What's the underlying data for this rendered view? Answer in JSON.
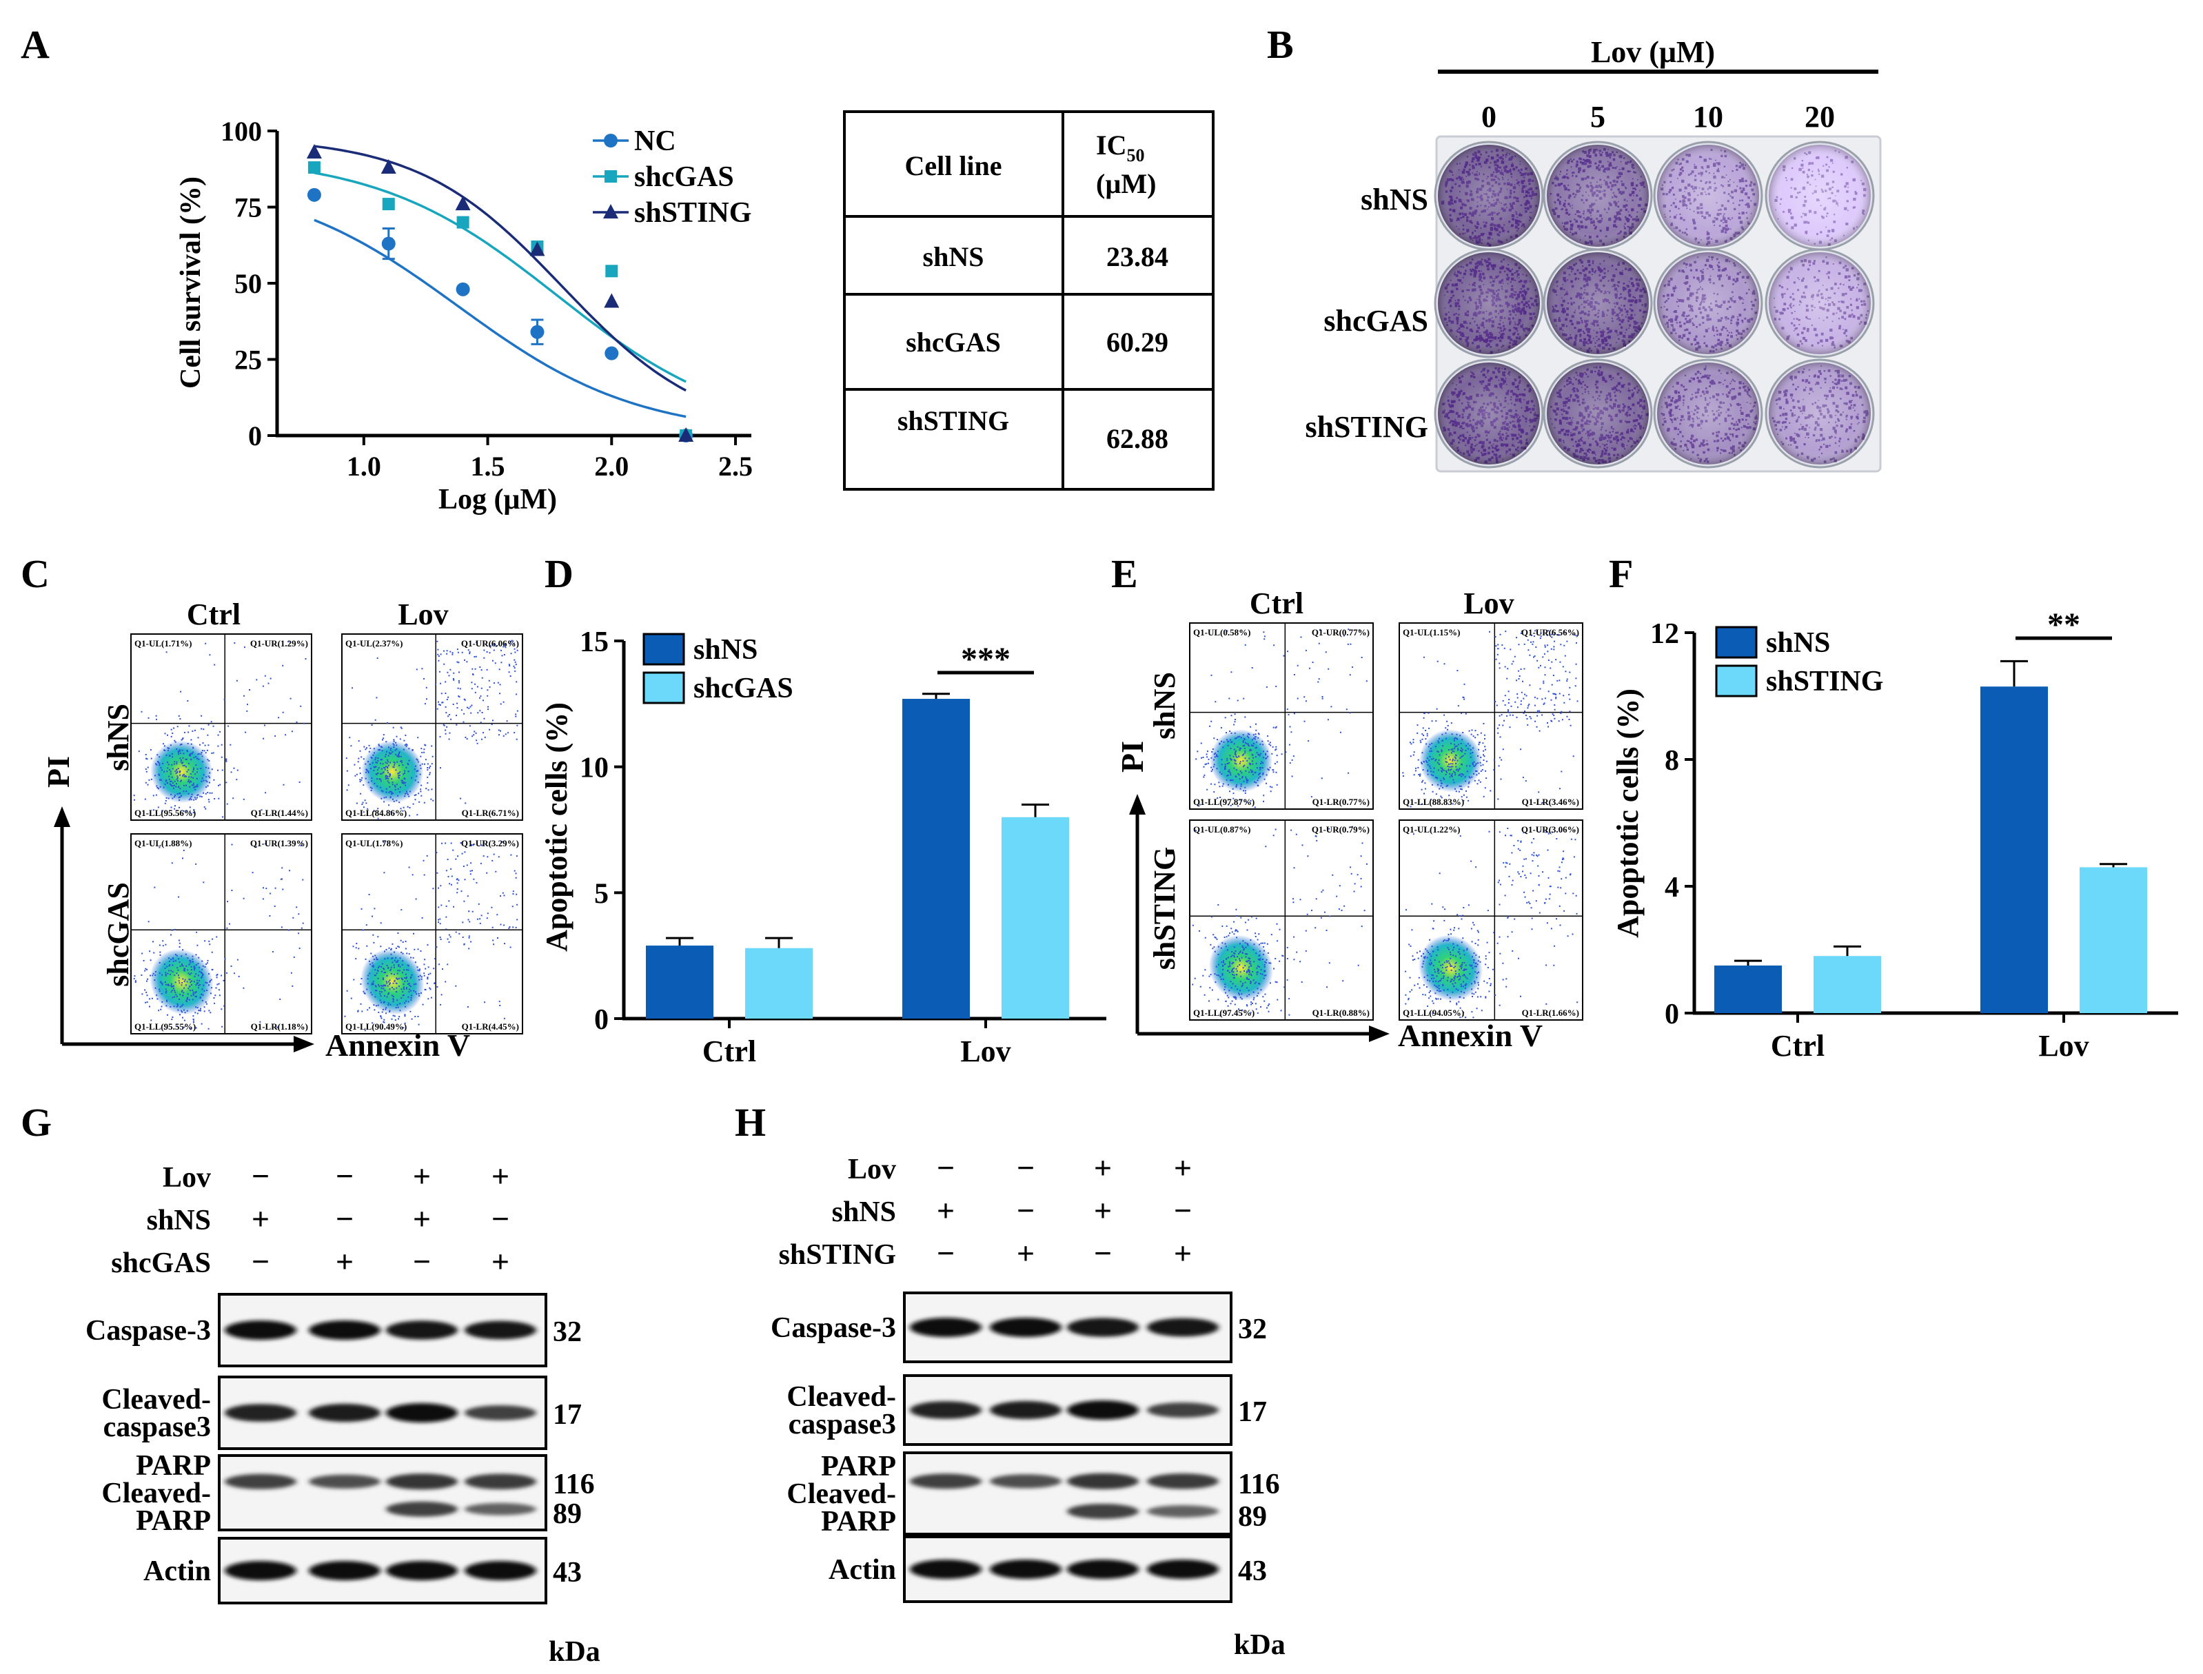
{
  "panel_labels": {
    "a": "A",
    "b": "B",
    "c": "C",
    "d": "D",
    "e": "E",
    "f": "F",
    "g": "G",
    "h": "H"
  },
  "colors": {
    "dark_blue": "#0b5cb5",
    "light_blue": "#6cd8fa",
    "teal": "#17a6bd",
    "navy": "#1a2c78",
    "nc_blue": "#1f73c4",
    "stain": "#5a2d8f"
  },
  "panel_a": {
    "table": {
      "header_cell_line": "Cell line",
      "header_ic": "IC",
      "header_ic_sub": "50",
      "header_unit": "(µM)",
      "rows": [
        {
          "line": "shNS",
          "value": "23.84"
        },
        {
          "line": "shcGAS",
          "value": "60.29"
        },
        {
          "line": "shSTING",
          "value": "62.88"
        }
      ]
    }
  },
  "panel_b": {
    "title": "Lov (μM)",
    "doses": [
      "0",
      "5",
      "10",
      "20"
    ],
    "rows": [
      "shNS",
      "shcGAS",
      "shSTING"
    ],
    "stain_intensity": [
      [
        0.95,
        0.8,
        0.45,
        0.18
      ],
      [
        0.95,
        0.9,
        0.55,
        0.35
      ],
      [
        0.95,
        0.9,
        0.62,
        0.5
      ]
    ]
  },
  "panel_c": {
    "col_labels": [
      "Ctrl",
      "Lov"
    ],
    "row_labels": [
      "shNS",
      "shcGAS"
    ],
    "y_axis": "PI",
    "x_axis": "Annexin V",
    "plots": [
      [
        {
          "ul": "Q1-UL(1.71%)",
          "ur": "Q1-UR(1.29%)",
          "ll": "Q1-LL(95.56%)",
          "lr": "Q1-LR(1.44%)"
        },
        {
          "ul": "Q1-UL(2.37%)",
          "ur": "Q1-UR(6.06%)",
          "ll": "Q1-LL(84.86%)",
          "lr": "Q1-LR(6.71%)"
        }
      ],
      [
        {
          "ul": "Q1-UL(1.88%)",
          "ur": "Q1-UR(1.39%)",
          "ll": "Q1-LL(95.55%)",
          "lr": "Q1-LR(1.18%)"
        },
        {
          "ul": "Q1-UL(1.78%)",
          "ur": "Q1-UR(3.29%)",
          "ll": "Q1-LL(90.49%)",
          "lr": "Q1-LR(4.45%)"
        }
      ]
    ]
  },
  "panel_e": {
    "col_labels": [
      "Ctrl",
      "Lov"
    ],
    "row_labels": [
      "shNS",
      "shSTING"
    ],
    "y_axis": "PI",
    "x_axis": "Annexin V",
    "plots": [
      [
        {
          "ul": "Q1-UL(0.58%)",
          "ur": "Q1-UR(0.77%)",
          "ll": "Q1-LL(97.87%)",
          "lr": "Q1-LR(0.77%)"
        },
        {
          "ul": "Q1-UL(1.15%)",
          "ur": "Q1-UR(6.56%)",
          "ll": "Q1-LL(88.83%)",
          "lr": "Q1-LR(3.46%)"
        }
      ],
      [
        {
          "ul": "Q1-UL(0.87%)",
          "ur": "Q1-UR(0.79%)",
          "ll": "Q1-LL(97.45%)",
          "lr": "Q1-LR(0.88%)"
        },
        {
          "ul": "Q1-UL(1.22%)",
          "ur": "Q1-UR(3.06%)",
          "ll": "Q1-LL(94.05%)",
          "lr": "Q1-LR(1.66%)"
        }
      ]
    ]
  },
  "chart_data": [
    {
      "id": "A",
      "type": "scatter",
      "xlabel": "Log (μM)",
      "ylabel": "Cell survival (%)",
      "xlim": [
        0.65,
        2.55
      ],
      "ylim": [
        0,
        100
      ],
      "x_ticks": [
        "1.0",
        "1.5",
        "2.0",
        "2.5"
      ],
      "x_tick_values": [
        1.0,
        1.5,
        2.0,
        2.5
      ],
      "y_ticks": [
        "0",
        "25",
        "50",
        "75",
        "100"
      ],
      "y_tick_values": [
        0,
        25,
        50,
        75,
        100
      ],
      "series": [
        {
          "name": "NC",
          "marker": "circle",
          "color": "#1f73c4",
          "x": [
            0.8,
            1.1,
            1.4,
            1.7,
            2.0,
            2.3
          ],
          "y": [
            79,
            63,
            48,
            34,
            27,
            0
          ],
          "err": [
            0,
            5,
            0,
            4,
            0,
            0
          ],
          "fit_top": 85,
          "fit_logic50": 1.38,
          "fit_hill": 1.2
        },
        {
          "name": "shcGAS",
          "marker": "square",
          "color": "#17a6bd",
          "x": [
            0.8,
            1.1,
            1.4,
            1.7,
            2.0,
            2.3
          ],
          "y": [
            88,
            76,
            70,
            62,
            54,
            0
          ],
          "err": [
            0,
            0,
            0,
            0,
            0,
            0
          ],
          "fit_top": 92,
          "fit_logic50": 1.78,
          "fit_hill": 1.2
        },
        {
          "name": "shSTING",
          "marker": "triangle",
          "color": "#1a2c78",
          "x": [
            0.8,
            1.1,
            1.4,
            1.7,
            2.0,
            2.3
          ],
          "y": [
            93,
            88,
            76,
            61,
            44,
            0
          ],
          "err": [
            0,
            0,
            0,
            0,
            0,
            0
          ],
          "fit_top": 98,
          "fit_logic50": 1.8,
          "fit_hill": 1.5
        }
      ]
    },
    {
      "id": "D",
      "type": "bar",
      "ylabel": "Apoptotic cells (%)",
      "categories": [
        "Ctrl",
        "Lov"
      ],
      "ylim": [
        0,
        15
      ],
      "y_ticks": [
        "0",
        "5",
        "10",
        "15"
      ],
      "y_tick_values": [
        0,
        5,
        10,
        15
      ],
      "series": [
        {
          "name": "shNS",
          "color": "#0b5cb5",
          "values": [
            2.9,
            12.7
          ],
          "err": [
            0.3,
            0.2
          ]
        },
        {
          "name": "shcGAS",
          "color": "#6cd8fa",
          "values": [
            2.8,
            8.0
          ],
          "err": [
            0.4,
            0.5
          ]
        }
      ],
      "significance": [
        {
          "category": "Lov",
          "label": "***"
        }
      ]
    },
    {
      "id": "F",
      "type": "bar",
      "ylabel": "Apoptotic cells (%)",
      "categories": [
        "Ctrl",
        "Lov"
      ],
      "ylim": [
        0,
        12
      ],
      "y_ticks": [
        "0",
        "4",
        "8",
        "12"
      ],
      "y_tick_values": [
        0,
        4,
        8,
        12
      ],
      "series": [
        {
          "name": "shNS",
          "color": "#0b5cb5",
          "values": [
            1.5,
            10.3
          ],
          "err": [
            0.15,
            0.8
          ]
        },
        {
          "name": "shSTING",
          "color": "#6cd8fa",
          "values": [
            1.8,
            4.6
          ],
          "err": [
            0.3,
            0.1
          ]
        }
      ],
      "significance": [
        {
          "category": "Lov",
          "label": "**"
        }
      ]
    }
  ],
  "panel_g": {
    "conditions": [
      {
        "label": "Lov",
        "signs": [
          "−",
          "−",
          "+",
          "+"
        ]
      },
      {
        "label": "shNS",
        "signs": [
          "+",
          "−",
          "+",
          "−"
        ]
      },
      {
        "label": "shcGAS",
        "signs": [
          "−",
          "+",
          "−",
          "+"
        ]
      }
    ],
    "blots": [
      {
        "labels": [
          "Caspase-3"
        ],
        "kda": [
          "32"
        ]
      },
      {
        "labels": [
          "Cleaved-",
          "caspase3"
        ],
        "kda": [
          "17"
        ]
      },
      {
        "labels": [
          "PARP",
          "Cleaved-",
          "PARP"
        ],
        "kda": [
          "116",
          "89"
        ]
      },
      {
        "labels": [
          "Actin"
        ],
        "kda": [
          "43"
        ]
      }
    ],
    "kda_unit": "kDa"
  },
  "panel_h": {
    "conditions": [
      {
        "label": "Lov",
        "signs": [
          "−",
          "−",
          "+",
          "+"
        ]
      },
      {
        "label": "shNS",
        "signs": [
          "+",
          "−",
          "+",
          "−"
        ]
      },
      {
        "label": "shSTING",
        "signs": [
          "−",
          "+",
          "−",
          "+"
        ]
      }
    ],
    "blots": [
      {
        "labels": [
          "Caspase-3"
        ],
        "kda": [
          "32"
        ]
      },
      {
        "labels": [
          "Cleaved-",
          "caspase3"
        ],
        "kda": [
          "17"
        ]
      },
      {
        "labels": [
          "PARP",
          "Cleaved-",
          "PARP"
        ],
        "kda": [
          "116",
          "89"
        ]
      },
      {
        "labels": [
          "Actin"
        ],
        "kda": [
          "43"
        ]
      }
    ],
    "kda_unit": "kDa"
  }
}
